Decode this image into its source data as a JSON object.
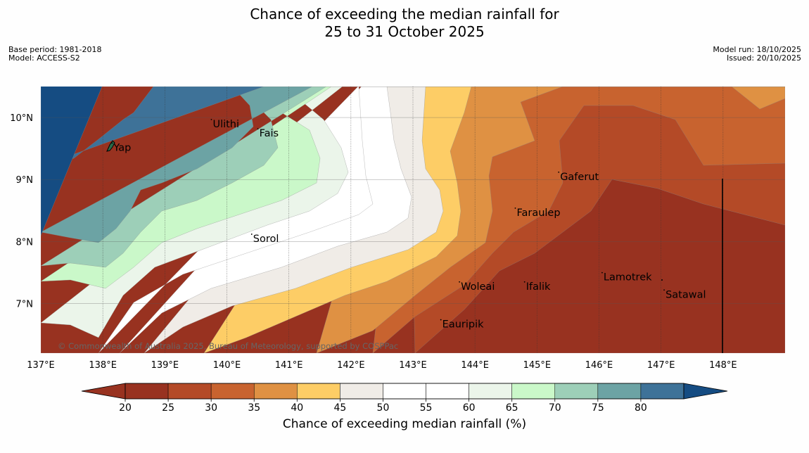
{
  "title_line1": "Chance of exceeding the median rainfall for",
  "title_line2": "25 to 31 October 2025",
  "meta": {
    "base_period": "Base period: 1981-2018",
    "model": "Model: ACCESS-S2",
    "model_run": "Model run: 18/10/2025",
    "issued": "Issued: 20/10/2025"
  },
  "copyright": "© Commonwealth of Australia 2025, Bureau of Meteorology, supported by COSPPac",
  "axes": {
    "lon_ticks": [
      "137°E",
      "138°E",
      "139°E",
      "140°E",
      "141°E",
      "142°E",
      "143°E",
      "144°E",
      "145°E",
      "146°E",
      "147°E",
      "148°E"
    ],
    "lat_ticks": [
      "10°N",
      "9°N",
      "8°N",
      "7°N"
    ],
    "lon_values": [
      137,
      138,
      139,
      140,
      141,
      142,
      143,
      144,
      145,
      146,
      147,
      148
    ],
    "lat_values": [
      10,
      9,
      8,
      7
    ],
    "lon_range": [
      137,
      149
    ],
    "lat_range": [
      6.2,
      10.5
    ]
  },
  "places": [
    {
      "name": "Yap",
      "lon": 138.15,
      "lat": 9.52
    },
    {
      "name": "Ulithi",
      "lon": 139.75,
      "lat": 9.9
    },
    {
      "name": "Fais",
      "lon": 140.5,
      "lat": 9.75
    },
    {
      "name": "Sorol",
      "lon": 140.4,
      "lat": 8.05
    },
    {
      "name": "Gaferut",
      "lon": 145.35,
      "lat": 9.05
    },
    {
      "name": "Faraulep",
      "lon": 144.65,
      "lat": 8.47
    },
    {
      "name": "Woleai",
      "lon": 143.75,
      "lat": 7.28
    },
    {
      "name": "Ifalik",
      "lon": 144.8,
      "lat": 7.28
    },
    {
      "name": "Lamotrek",
      "lon": 146.05,
      "lat": 7.43
    },
    {
      "name": "Satawal",
      "lon": 147.05,
      "lat": 7.15
    },
    {
      "name": "Eauripik",
      "lon": 143.45,
      "lat": 6.67
    }
  ],
  "legend": {
    "label": "Chance of exceeding median rainfall (%)",
    "ticks": [
      "20",
      "25",
      "30",
      "35",
      "40",
      "45",
      "50",
      "55",
      "60",
      "65",
      "70",
      "75",
      "80"
    ],
    "colors": [
      "#983220",
      "#b44a27",
      "#c8632f",
      "#df9143",
      "#fdcd66",
      "#f0ece7",
      "#ffffff",
      "#ffffff",
      "#ebf5ea",
      "#caf8c9",
      "#9dcfb8",
      "#6ca3a4",
      "#3e7298"
    ],
    "under_color": "#983220",
    "over_color": "#154c82"
  },
  "bands": [
    "#983220",
    "#b44a27",
    "#c8632f",
    "#df9143",
    "#fdcd66",
    "#f0ece7",
    "#ffffff",
    "#ffffff",
    "#ebf5ea",
    "#caf8c9",
    "#9dcfb8",
    "#6ca3a4",
    "#3e7298",
    "#154c82"
  ]
}
